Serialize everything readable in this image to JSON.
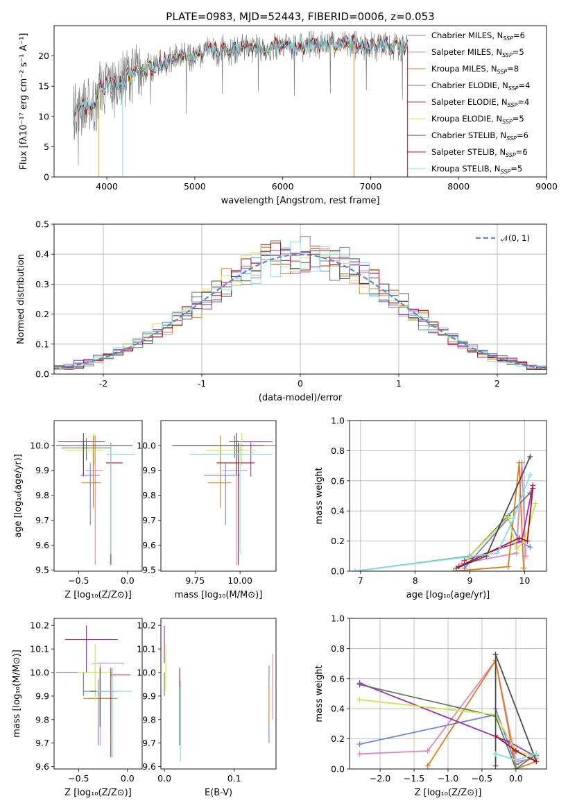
{
  "title": "PLATE=0983, MJD=52443, FIBERID=0006, z=0.053",
  "colors": [
    "#8c8c8c",
    "#e377c2",
    "#ff7f0e",
    "#2ca02c",
    "#9467bd",
    "#bcbd22",
    "#4d4d4d",
    "#c00000",
    "#17becf"
  ],
  "fit_colors": [
    "#6a86d8",
    "#e484b8",
    "#e07b1c",
    "#5e8060",
    "#9a30b0",
    "#cde64a",
    "#4a4a4a",
    "#b01020",
    "#7fe0e8"
  ],
  "chart_data": [
    {
      "id": "spectrum",
      "type": "line",
      "xlabel": "wavelength [Angstrom, rest frame]",
      "ylabel": "Flux [fλ10⁻¹⁷ erg cm⁻² s⁻¹ A⁻¹]",
      "xlim": [
        3400,
        9000
      ],
      "ylim": [
        0,
        25
      ],
      "xticks": [
        4000,
        5000,
        6000,
        7000,
        8000,
        9000
      ],
      "yticks": [
        0,
        5,
        10,
        15,
        20
      ],
      "data_range": [
        3620,
        7420
      ],
      "legend_position": "right",
      "series": [
        {
          "name": "Chabrier MILES, N",
          "sub": "SSP",
          "tail": "=6"
        },
        {
          "name": "Salpeter MILES, N",
          "sub": "SSP",
          "tail": "=5"
        },
        {
          "name": "Kroupa MILES, N",
          "sub": "SSP",
          "tail": "=8"
        },
        {
          "name": "Chabrier ELODIE, N",
          "sub": "SSP",
          "tail": "=4"
        },
        {
          "name": "Salpeter ELODIE, N",
          "sub": "SSP",
          "tail": "=4"
        },
        {
          "name": "Kroupa ELODIE, N",
          "sub": "SSP",
          "tail": "=5"
        },
        {
          "name": "Chabrier STELIB, N",
          "sub": "SSP",
          "tail": "=6"
        },
        {
          "name": "Salpeter STELIB, N",
          "sub": "SSP",
          "tail": "=6"
        },
        {
          "name": "Kroupa STELIB, N",
          "sub": "SSP",
          "tail": "=5"
        }
      ],
      "grid": false
    },
    {
      "id": "residuals",
      "type": "histogram",
      "xlabel": "(data-model)/error",
      "ylabel": "Normed distribution",
      "xlim": [
        -2.5,
        2.5
      ],
      "ylim": [
        0,
        0.5
      ],
      "xticks": [
        -2,
        -1,
        0,
        1,
        2
      ],
      "yticks": [
        0.0,
        0.1,
        0.2,
        0.3,
        0.4,
        0.5
      ],
      "bin_width": 0.1,
      "gaussian_label": "𝒩(0, 1)",
      "legend_position": "top-right",
      "grid": true
    },
    {
      "id": "age_vs_Z",
      "type": "errorbar",
      "xlabel": "Z [log₁₀(Z/Z⊙)]",
      "ylabel": "age  [log₁₀(age/yr)]",
      "xlim": [
        -0.75,
        0.15
      ],
      "ylim": [
        9.495,
        10.1
      ],
      "xticks": [
        -0.5,
        0.0
      ],
      "xticklabels": [
        "−0.5",
        "0.0"
      ],
      "yticks": [
        9.5,
        9.6,
        9.7,
        9.8,
        9.9,
        10.0
      ],
      "points": [
        {
          "x": -0.38,
          "y": 9.88,
          "xe": [
            0.1,
            0.1
          ],
          "ye": [
            0.2,
            0.05
          ]
        },
        {
          "x": -0.33,
          "y": 9.9,
          "xe": [
            0.1,
            0.08
          ],
          "ye": [
            0.38,
            0.14
          ]
        },
        {
          "x": -0.35,
          "y": 9.85,
          "xe": [
            0.12,
            0.08
          ],
          "ye": [
            0.1,
            0.19
          ]
        },
        {
          "x": -0.42,
          "y": 9.99,
          "xe": [
            0.25,
            0.25
          ],
          "ye": [
            0.05,
            0.04
          ]
        },
        {
          "x": -0.45,
          "y": 10.015,
          "xe": [
            0.26,
            0.22
          ],
          "ye": [
            0.14,
            0.0
          ]
        },
        {
          "x": -0.34,
          "y": 9.98,
          "xe": [
            0.3,
            0.1
          ],
          "ye": [
            0.06,
            0.07
          ]
        },
        {
          "x": -0.45,
          "y": 10.0,
          "xe": [
            0.28,
            0.5
          ],
          "ye": [
            0.12,
            0.05
          ]
        },
        {
          "x": -0.17,
          "y": 9.93,
          "xe": [
            0.05,
            0.12
          ],
          "ye": [
            0.41,
            0.08
          ]
        },
        {
          "x": -0.17,
          "y": 9.965,
          "xe": [
            0.05,
            0.25
          ],
          "ye": [
            0.4,
            0.04
          ]
        }
      ],
      "grid": false
    },
    {
      "id": "age_vs_mass",
      "type": "errorbar",
      "xlabel": "mass [log₁₀(M/M⊙)]",
      "ylabel": "",
      "xlim": [
        9.56,
        10.2
      ],
      "ylim": [
        9.495,
        10.1
      ],
      "xticks": [
        9.75,
        10.0
      ],
      "xticklabels": [
        "9.75",
        "10.00"
      ],
      "yticks": [
        9.5,
        9.6,
        9.7,
        9.8,
        9.9,
        10.0
      ],
      "points": [
        {
          "x": 9.92,
          "y": 9.88,
          "xe": [
            0.12,
            0.08
          ],
          "ye": [
            0.2,
            0.05
          ]
        },
        {
          "x": 9.98,
          "y": 9.9,
          "xe": [
            0.08,
            0.06
          ],
          "ye": [
            0.38,
            0.14
          ]
        },
        {
          "x": 9.89,
          "y": 9.85,
          "xe": [
            0.07,
            0.06
          ],
          "ye": [
            0.1,
            0.19
          ]
        },
        {
          "x": 9.97,
          "y": 10.0,
          "xe": [
            0.35,
            0.35
          ],
          "ye": [
            0.05,
            0.04
          ]
        },
        {
          "x": 10.06,
          "y": 10.015,
          "xe": [
            0.12,
            0.12
          ],
          "ye": [
            0.14,
            0.0
          ]
        },
        {
          "x": 10.01,
          "y": 9.98,
          "xe": [
            0.2,
            0.08
          ],
          "ye": [
            0.06,
            0.07
          ]
        },
        {
          "x": 9.98,
          "y": 10.0,
          "xe": [
            0.35,
            0.15
          ],
          "ye": [
            0.12,
            0.05
          ]
        },
        {
          "x": 9.99,
          "y": 9.93,
          "xe": [
            0.12,
            0.09
          ],
          "ye": [
            0.41,
            0.08
          ]
        },
        {
          "x": 10.0,
          "y": 9.965,
          "xe": [
            0.28,
            0.18
          ],
          "ye": [
            0.4,
            0.04
          ]
        }
      ],
      "grid": false
    },
    {
      "id": "weight_vs_age",
      "type": "line",
      "xlabel": "age  [log₁₀(age/yr)]",
      "ylabel": "mass weight",
      "xlim": [
        6.8,
        10.4
      ],
      "ylim": [
        0,
        1.0
      ],
      "xticks": [
        7,
        8,
        9,
        10
      ],
      "yticks": [
        0.0,
        0.2,
        0.4,
        0.6,
        0.8,
        1.0
      ],
      "series": [
        {
          "x": [
            8.9,
            9.7,
            9.9,
            10.1
          ],
          "y": [
            0.02,
            0.35,
            0.2,
            0.16
          ]
        },
        {
          "x": [
            8.85,
            9.85,
            9.95,
            10.02
          ],
          "y": [
            0.05,
            0.12,
            0.72,
            0.1
          ]
        },
        {
          "x": [
            8.7,
            9.7,
            9.9,
            9.98
          ],
          "y": [
            0.0,
            0.03,
            0.72,
            0.02
          ]
        },
        {
          "x": [
            6.9,
            9.0,
            9.7,
            10.1
          ],
          "y": [
            0.0,
            0.1,
            0.37,
            0.52
          ]
        },
        {
          "x": [
            8.9,
            9.95,
            10.15
          ],
          "y": [
            0.07,
            0.2,
            0.57
          ]
        },
        {
          "x": [
            8.95,
            9.7,
            9.85,
            10.0,
            10.2
          ],
          "y": [
            0.08,
            0.36,
            0.15,
            0.2,
            0.45
          ]
        },
        {
          "x": [
            8.75,
            9.3,
            10.1
          ],
          "y": [
            0.02,
            0.1,
            0.76
          ]
        },
        {
          "x": [
            8.8,
            9.9,
            10.05,
            10.15
          ],
          "y": [
            0.03,
            0.22,
            0.2,
            0.55
          ]
        },
        {
          "x": [
            6.9,
            9.5,
            9.8,
            10.1
          ],
          "y": [
            0.0,
            0.12,
            0.35,
            0.64
          ]
        }
      ],
      "grid": true
    },
    {
      "id": "mass_vs_Z",
      "type": "errorbar",
      "xlabel": "Z [log₁₀(Z/Z⊙)]",
      "ylabel": "mass [log₁₀(M/M⊙)]",
      "xlim": [
        -0.75,
        0.15
      ],
      "ylim": [
        9.59,
        10.23
      ],
      "xticks": [
        -0.5,
        0.0
      ],
      "xticklabels": [
        "−0.5",
        "0.0"
      ],
      "yticks": [
        9.6,
        9.7,
        9.8,
        9.9,
        10.0,
        10.1,
        10.2
      ],
      "points": [
        {
          "x": -0.3,
          "y": 9.92,
          "xe": [
            0.15,
            0.22
          ],
          "ye": [
            0.23,
            0.05
          ]
        },
        {
          "x": -0.28,
          "y": 10.04,
          "xe": [
            0.08,
            0.25
          ],
          "ye": [
            0.35,
            0.0
          ]
        },
        {
          "x": -0.28,
          "y": 9.89,
          "xe": [
            0.17,
            0.18
          ],
          "ye": [
            0.12,
            0.12
          ]
        },
        {
          "x": -0.45,
          "y": 10.0,
          "xe": [
            0.28,
            0.15
          ],
          "ye": [
            0.1,
            0.0
          ]
        },
        {
          "x": -0.42,
          "y": 10.14,
          "xe": [
            0.22,
            0.32
          ],
          "ye": [
            0.14,
            0.06
          ]
        },
        {
          "x": -0.33,
          "y": 10.0,
          "xe": [
            0.18,
            0.18
          ],
          "ye": [
            0.12,
            0.12
          ]
        },
        {
          "x": -0.28,
          "y": 9.92,
          "xe": [
            0.1,
            0.15
          ],
          "ye": [
            0.15,
            0.1
          ]
        },
        {
          "x": -0.17,
          "y": 9.99,
          "xe": [
            0.0,
            0.2
          ],
          "ye": [
            0.35,
            0.03
          ]
        },
        {
          "x": -0.15,
          "y": 9.92,
          "xe": [
            0.17,
            0.2
          ],
          "ye": [
            0.28,
            0.1
          ]
        }
      ],
      "grid": false
    },
    {
      "id": "mass_vs_ebv",
      "type": "errorbar",
      "xlabel": "E(B-V)",
      "ylabel": "",
      "xlim": [
        -0.005,
        0.16
      ],
      "ylim": [
        9.59,
        10.23
      ],
      "xticks": [
        0.0,
        0.1
      ],
      "xticklabels": [
        "0.0",
        "0.1"
      ],
      "yticks": [
        9.6,
        9.7,
        9.8,
        9.9,
        10.0,
        10.1,
        10.2
      ],
      "points": [
        {
          "x": 0.15,
          "y": 9.9,
          "xe": [
            0,
            0
          ],
          "ye": [
            0.2,
            0.13
          ]
        },
        {
          "x": 0.155,
          "y": 9.95,
          "xe": [
            0,
            0
          ],
          "ye": [
            0.15,
            0.13
          ]
        },
        {
          "x": 0.15,
          "y": 9.85,
          "xe": [
            0,
            0
          ],
          "ye": [
            0.08,
            0.1
          ]
        },
        {
          "x": 0.0,
          "y": 10.0,
          "xe": [
            0,
            0
          ],
          "ye": [
            0.1,
            0.0
          ]
        },
        {
          "x": 0.0,
          "y": 10.12,
          "xe": [
            0,
            0
          ],
          "ye": [
            0.08,
            0.08
          ]
        },
        {
          "x": 0.002,
          "y": 10.0,
          "xe": [
            0,
            0
          ],
          "ye": [
            0.08,
            0.12
          ]
        },
        {
          "x": 0.022,
          "y": 9.92,
          "xe": [
            0,
            0
          ],
          "ye": [
            0.23,
            0.05
          ]
        },
        {
          "x": 0.022,
          "y": 9.98,
          "xe": [
            0,
            0
          ],
          "ye": [
            0.04,
            0.04
          ]
        },
        {
          "x": 0.023,
          "y": 9.8,
          "xe": [
            0,
            0
          ],
          "ye": [
            0.18,
            0.17
          ]
        }
      ],
      "grid": false
    },
    {
      "id": "weight_vs_Z",
      "type": "line",
      "xlabel": "Z [log₁₀(Z/Z⊙)]",
      "ylabel": "mass weight",
      "xlim": [
        -2.45,
        0.45
      ],
      "ylim": [
        0,
        1.0
      ],
      "xticks": [
        -2.0,
        -1.5,
        -1.0,
        -0.5,
        0.0
      ],
      "xticklabels": [
        "−2.0",
        "−1.5",
        "−1.0",
        "−0.5",
        "0.0"
      ],
      "yticks": [
        0.0,
        0.2,
        0.4,
        0.6,
        0.8,
        1.0
      ],
      "series": [
        {
          "x": [
            -2.3,
            -0.3,
            -0.3,
            0.0,
            0.3
          ],
          "y": [
            0.165,
            0.36,
            0.4,
            0.03,
            0.09
          ]
        },
        {
          "x": [
            -2.3,
            -1.3,
            -0.3,
            0.0,
            0.3
          ],
          "y": [
            0.1,
            0.12,
            0.72,
            0.05,
            0.07
          ]
        },
        {
          "x": [
            -1.3,
            -0.3,
            0.0,
            0.3
          ],
          "y": [
            0.02,
            0.72,
            0.0,
            0.05
          ]
        },
        {
          "x": [
            -2.3,
            -0.3,
            0.0,
            0.3
          ],
          "y": [
            0.56,
            0.35,
            0.0,
            0.1
          ]
        },
        {
          "x": [
            -2.3,
            -0.1,
            0.3
          ],
          "y": [
            0.57,
            0.18,
            0.08
          ]
        },
        {
          "x": [
            -2.3,
            -0.3,
            0.0,
            0.3
          ],
          "y": [
            0.46,
            0.36,
            0.12,
            0.08
          ]
        },
        {
          "x": [
            -0.3,
            -0.3,
            0.3
          ],
          "y": [
            0.02,
            0.76,
            0.05
          ]
        },
        {
          "x": [
            -0.3,
            0.0,
            0.3
          ],
          "y": [
            0.22,
            0.12,
            0.05
          ]
        },
        {
          "x": [
            -0.3,
            0.0,
            0.3
          ],
          "y": [
            0.1,
            0.06,
            0.1
          ]
        }
      ],
      "grid": true
    }
  ]
}
